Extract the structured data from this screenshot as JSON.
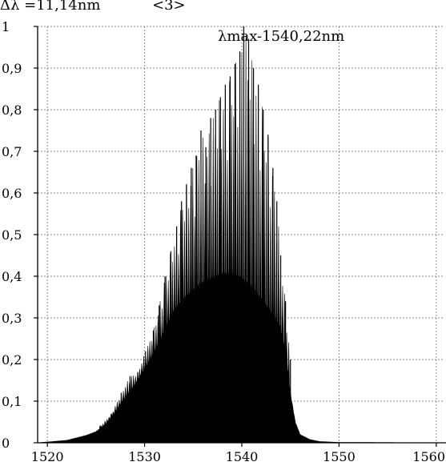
{
  "chart_data": {
    "type": "area",
    "title": "",
    "xlabel": "",
    "ylabel": "",
    "xlim": [
      1519,
      1561
    ],
    "ylim": [
      0,
      1
    ],
    "grid": true,
    "x_ticks": [
      1520,
      1530,
      1540,
      1550,
      1560
    ],
    "x_tick_labels": [
      "1520",
      "1530",
      "1540",
      "1550",
      "1560"
    ],
    "y_ticks": [
      0,
      0.1,
      0.2,
      0.3,
      0.4,
      0.5,
      0.6,
      0.7,
      0.8,
      0.9,
      1
    ],
    "y_tick_labels": [
      "0",
      "0,1",
      "0,2",
      "0,3",
      "0,4",
      "0,5",
      "0,6",
      "0,7",
      "0,8",
      "0,9",
      "1"
    ],
    "annotations": {
      "top_left": "Δλ =11,14nm",
      "top_center": "<3>",
      "peak": "λmax-1540,22nm"
    },
    "fill_color": "#000000",
    "envelope": [
      {
        "x": 1519.0,
        "y": 0.0
      },
      {
        "x": 1520.0,
        "y": 0.002
      },
      {
        "x": 1522.0,
        "y": 0.006
      },
      {
        "x": 1524.0,
        "y": 0.018
      },
      {
        "x": 1525.0,
        "y": 0.027
      },
      {
        "x": 1526.0,
        "y": 0.045
      },
      {
        "x": 1527.0,
        "y": 0.075
      },
      {
        "x": 1528.0,
        "y": 0.11
      },
      {
        "x": 1529.0,
        "y": 0.14
      },
      {
        "x": 1530.0,
        "y": 0.18
      },
      {
        "x": 1531.0,
        "y": 0.22
      },
      {
        "x": 1532.0,
        "y": 0.27
      },
      {
        "x": 1533.0,
        "y": 0.32
      },
      {
        "x": 1534.0,
        "y": 0.35
      },
      {
        "x": 1535.0,
        "y": 0.37
      },
      {
        "x": 1536.0,
        "y": 0.39
      },
      {
        "x": 1537.0,
        "y": 0.4
      },
      {
        "x": 1538.0,
        "y": 0.41
      },
      {
        "x": 1539.0,
        "y": 0.41
      },
      {
        "x": 1540.0,
        "y": 0.4
      },
      {
        "x": 1541.0,
        "y": 0.38
      },
      {
        "x": 1542.0,
        "y": 0.35
      },
      {
        "x": 1543.0,
        "y": 0.32
      },
      {
        "x": 1544.0,
        "y": 0.28
      },
      {
        "x": 1544.5,
        "y": 0.22
      },
      {
        "x": 1545.0,
        "y": 0.12
      },
      {
        "x": 1545.5,
        "y": 0.05
      },
      {
        "x": 1546.0,
        "y": 0.02
      },
      {
        "x": 1547.0,
        "y": 0.008
      },
      {
        "x": 1548.0,
        "y": 0.003
      },
      {
        "x": 1550.0,
        "y": 0.001
      },
      {
        "x": 1561.0,
        "y": 0.0
      }
    ],
    "peaks": [
      {
        "x": 1525.4,
        "y": 0.04
      },
      {
        "x": 1526.6,
        "y": 0.07
      },
      {
        "x": 1527.6,
        "y": 0.12
      },
      {
        "x": 1528.5,
        "y": 0.16
      },
      {
        "x": 1529.3,
        "y": 0.17
      },
      {
        "x": 1530.1,
        "y": 0.22
      },
      {
        "x": 1530.9,
        "y": 0.27
      },
      {
        "x": 1531.5,
        "y": 0.33
      },
      {
        "x": 1532.1,
        "y": 0.4
      },
      {
        "x": 1532.7,
        "y": 0.46
      },
      {
        "x": 1533.3,
        "y": 0.52
      },
      {
        "x": 1533.8,
        "y": 0.58
      },
      {
        "x": 1534.3,
        "y": 0.62
      },
      {
        "x": 1534.8,
        "y": 0.66
      },
      {
        "x": 1535.3,
        "y": 0.69
      },
      {
        "x": 1535.8,
        "y": 0.75
      },
      {
        "x": 1536.3,
        "y": 0.71
      },
      {
        "x": 1536.8,
        "y": 0.78
      },
      {
        "x": 1537.3,
        "y": 0.8
      },
      {
        "x": 1537.8,
        "y": 0.83
      },
      {
        "x": 1538.3,
        "y": 0.86
      },
      {
        "x": 1538.8,
        "y": 0.88
      },
      {
        "x": 1539.3,
        "y": 0.91
      },
      {
        "x": 1539.8,
        "y": 0.94
      },
      {
        "x": 1540.2,
        "y": 1.0
      },
      {
        "x": 1540.7,
        "y": 0.97
      },
      {
        "x": 1541.2,
        "y": 0.9
      },
      {
        "x": 1541.7,
        "y": 0.86
      },
      {
        "x": 1542.2,
        "y": 0.8
      },
      {
        "x": 1542.7,
        "y": 0.74
      },
      {
        "x": 1543.2,
        "y": 0.66
      },
      {
        "x": 1543.6,
        "y": 0.58
      },
      {
        "x": 1544.0,
        "y": 0.45
      },
      {
        "x": 1544.5,
        "y": 0.34
      },
      {
        "x": 1545.0,
        "y": 0.2
      }
    ]
  }
}
